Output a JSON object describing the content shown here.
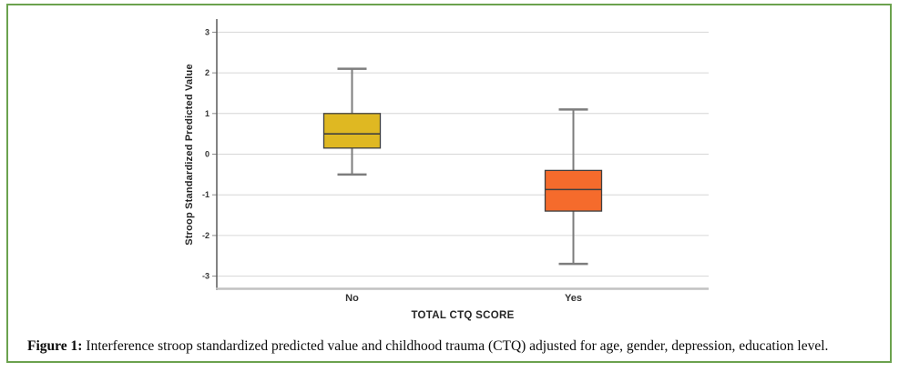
{
  "figure": {
    "caption_label": "Figure 1:",
    "caption_text": "Interference stroop standardized predicted value and childhood trauma (CTQ) adjusted for age, gender, depression, education level."
  },
  "colors": {
    "panel_border_green": "#6ba24e",
    "gridline": "#d6d6d6",
    "y_axis_line": "#5a5a5a",
    "x_axis_line": "#c2c2c2",
    "tick_mark": "#8a8a8a",
    "tick_label": "#333333",
    "category_label": "#333333",
    "whisker": "#7d7d7d",
    "box_stroke": "#3f3f3f",
    "median_line": "#3f3f3f",
    "box_no_fill": "#dfb822",
    "box_yes_fill": "#f56b2c"
  },
  "chart_data": {
    "type": "boxplot",
    "title": "",
    "xlabel": "TOTAL CTQ SCORE",
    "ylabel": "Stroop Standardized Predicted Value",
    "categories": [
      "No",
      "Yes"
    ],
    "yticks": [
      3,
      2,
      1,
      0,
      -1,
      -2,
      -3
    ],
    "ylim": [
      -3.3,
      3.3
    ],
    "grid": "horizontal-gridlines-only",
    "legend": "none",
    "series": [
      {
        "category": "No",
        "whisker_low": -0.5,
        "q1": 0.15,
        "median": 0.5,
        "q3": 1.0,
        "whisker_high": 2.1,
        "fill": "#dfb822"
      },
      {
        "category": "Yes",
        "whisker_low": -2.7,
        "q1": -1.4,
        "median": -0.87,
        "q3": -0.4,
        "whisker_high": 1.1,
        "fill": "#f56b2c"
      }
    ]
  }
}
